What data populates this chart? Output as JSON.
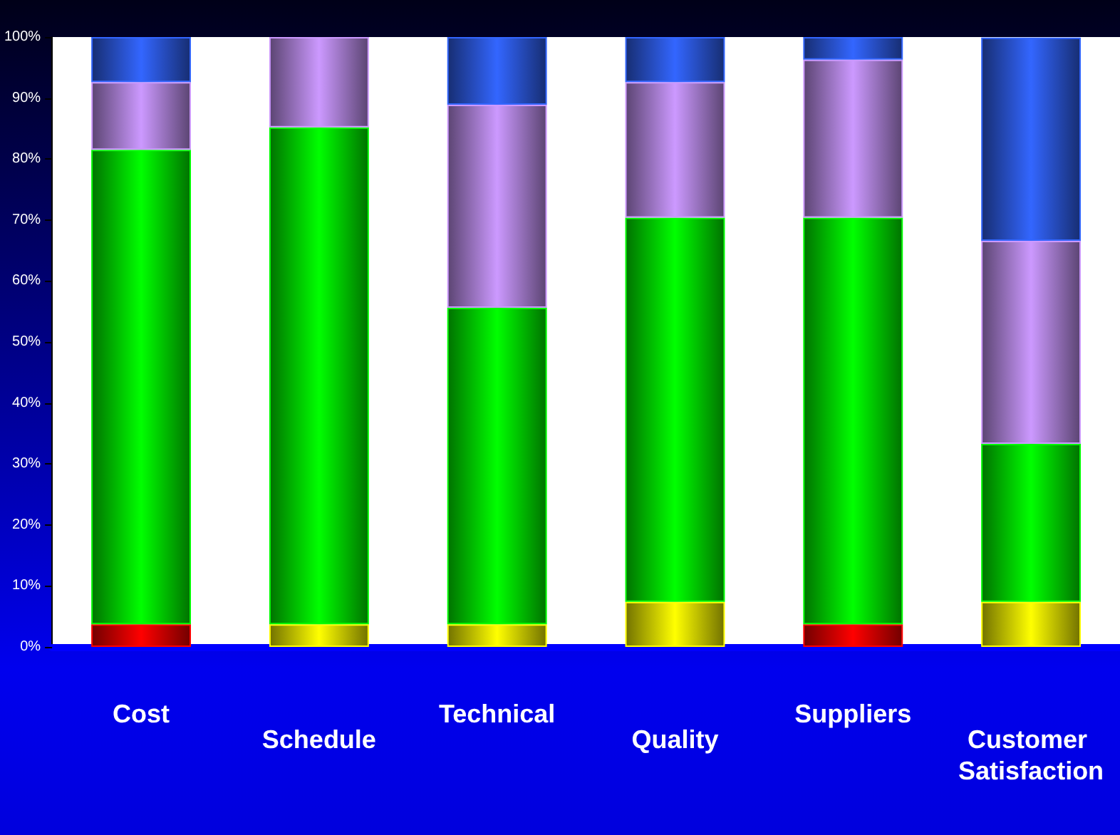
{
  "chart_data": {
    "type": "bar",
    "stacked": true,
    "categories": [
      "Cost",
      "Schedule",
      "Technical",
      "Quality",
      "Suppliers",
      "Customer Satisfaction"
    ],
    "series": [
      {
        "color": "#ff0000",
        "values": [
          3.7,
          null,
          null,
          null,
          3.7,
          null
        ]
      },
      {
        "color": "#ffff00",
        "values": [
          null,
          3.7,
          3.7,
          7.4,
          null,
          7.4
        ]
      },
      {
        "color": "#00ff00",
        "values": [
          77.8,
          81.5,
          51.9,
          63.0,
          66.7,
          25.9
        ]
      },
      {
        "color": "#cc99ff",
        "values": [
          11.1,
          14.8,
          33.3,
          22.2,
          25.9,
          33.3
        ]
      },
      {
        "color": "#3366ff",
        "values": [
          7.4,
          null,
          11.1,
          7.4,
          3.7,
          33.3
        ]
      }
    ],
    "ylim": [
      0,
      100
    ],
    "yticks": [
      {
        "value": 0,
        "label": "0%"
      },
      {
        "value": 10,
        "label": "10%"
      },
      {
        "value": 20,
        "label": "20%"
      },
      {
        "value": 30,
        "label": "30%"
      },
      {
        "value": 40,
        "label": "40%"
      },
      {
        "value": 50,
        "label": "50%"
      },
      {
        "value": 60,
        "label": "60%"
      },
      {
        "value": 70,
        "label": "70%"
      },
      {
        "value": 80,
        "label": "80%"
      },
      {
        "value": 90,
        "label": "90%"
      },
      {
        "value": 100,
        "label": "100%"
      }
    ],
    "grid": false
  }
}
